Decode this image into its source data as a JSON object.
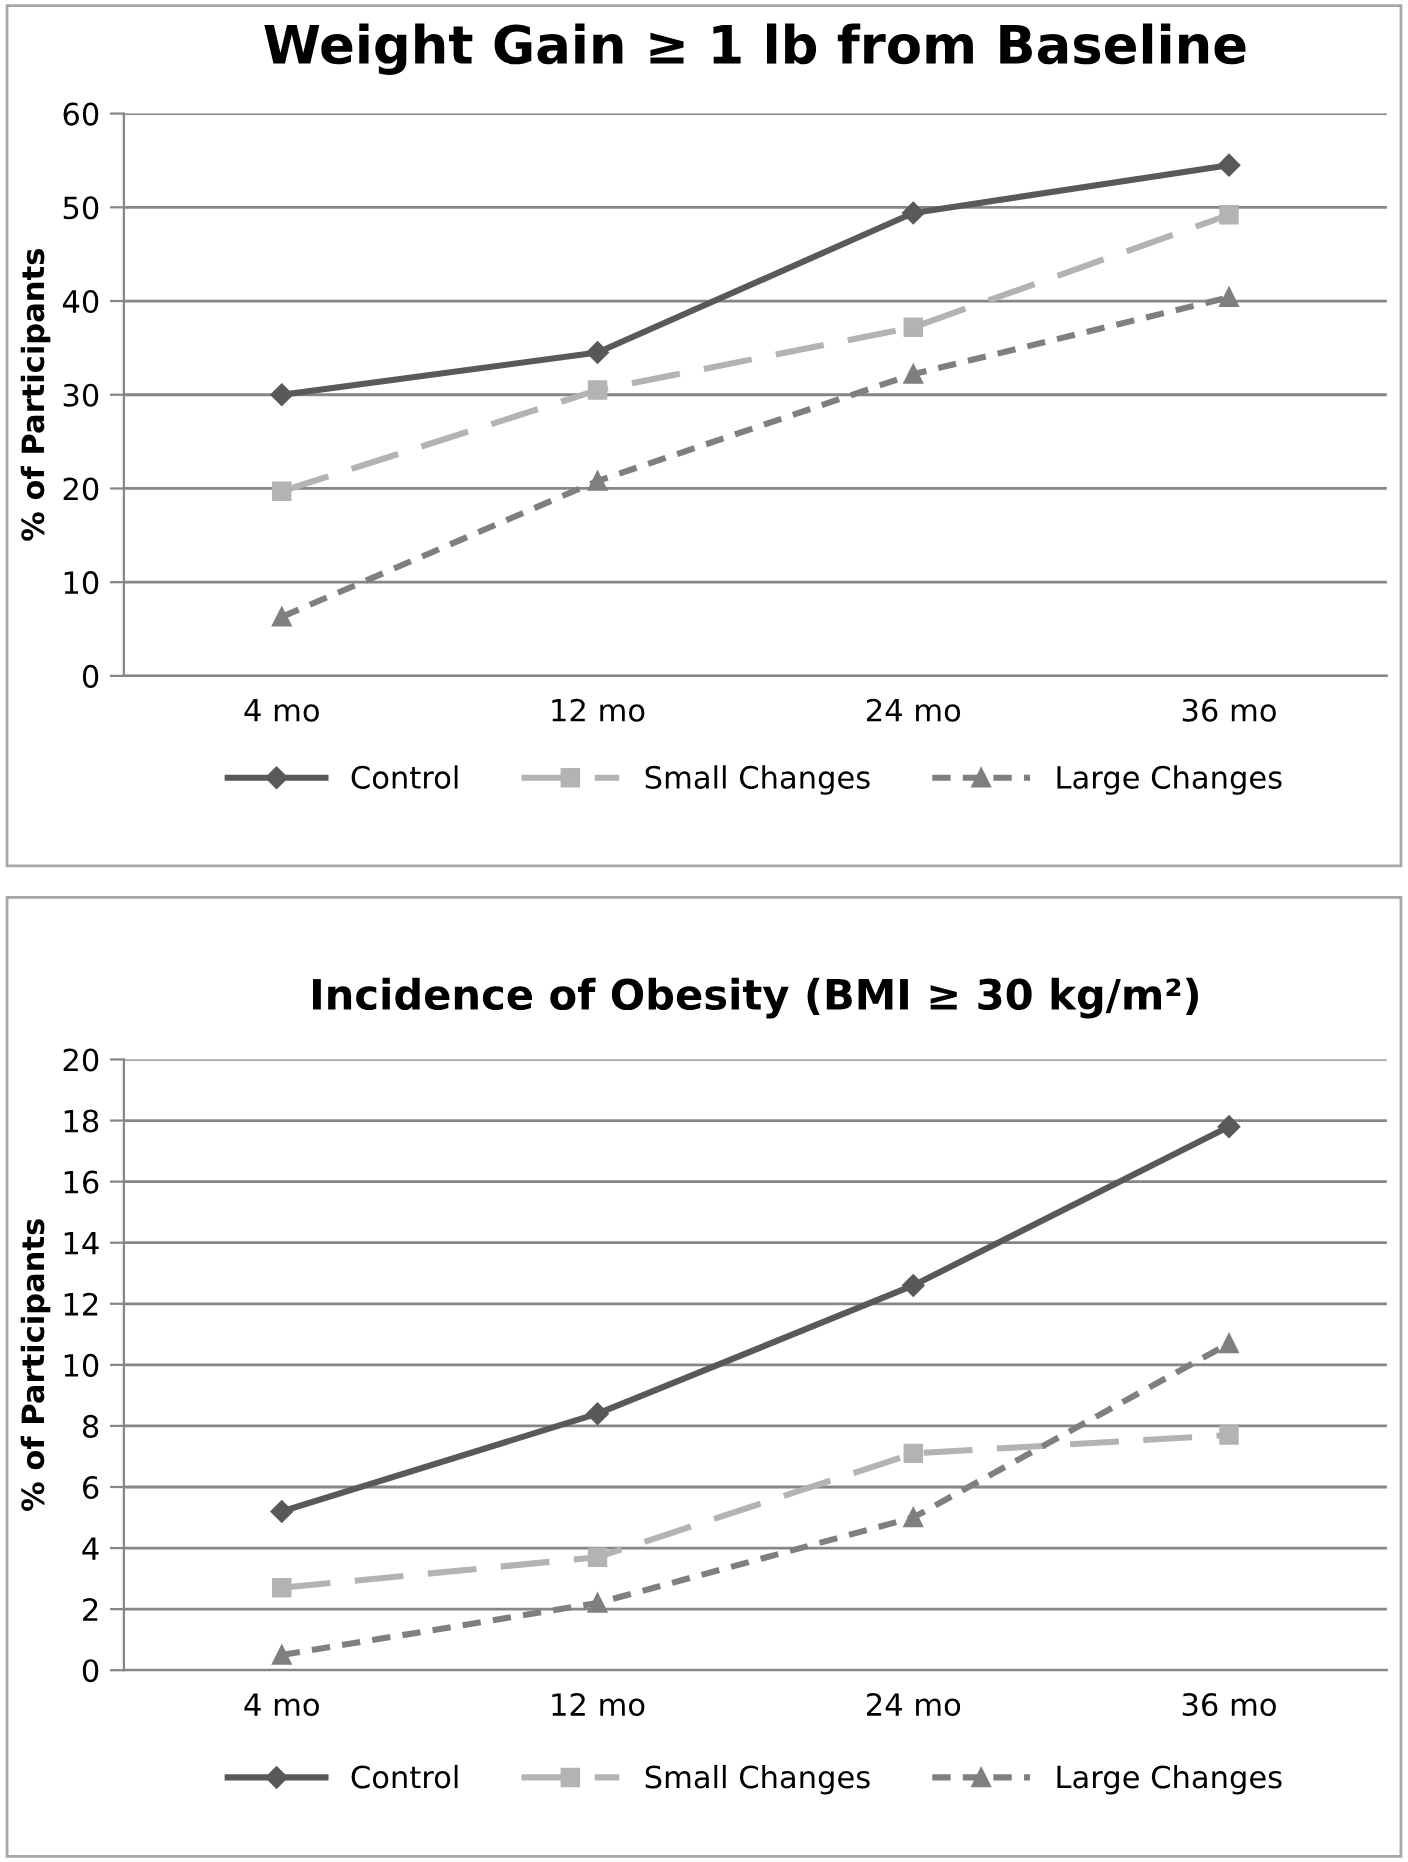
{
  "chart_data": [
    {
      "type": "line",
      "title": "Weight Gain ≥ 1 lb from Baseline",
      "ylabel": "% of Participants",
      "categories": [
        "4 mo",
        "12 mo",
        "24 mo",
        "36 mo"
      ],
      "series": [
        {
          "name": "Control",
          "color": "#595959",
          "marker": "diamond",
          "line_style": "solid",
          "values": [
            30,
            34.5,
            49.4,
            54.5
          ]
        },
        {
          "name": "Small Changes",
          "color": "#b3b3b3",
          "marker": "square",
          "line_style": "dashed",
          "values": [
            19.7,
            30.5,
            37.2,
            49.2
          ]
        },
        {
          "name": "Large Changes",
          "color": "#7f7f7f",
          "marker": "triangle",
          "line_style": "dotted",
          "values": [
            6.3,
            20.8,
            32.2,
            40.4
          ]
        }
      ],
      "ylim": [
        0,
        60
      ],
      "yticks": [
        0,
        10,
        20,
        30,
        40,
        50,
        60
      ],
      "grid": "y",
      "legend": "bottom"
    },
    {
      "type": "line",
      "title": "Incidence of Obesity (BMI ≥ 30 kg/m²)",
      "ylabel": "% of Participants",
      "categories": [
        "4 mo",
        "12 mo",
        "24 mo",
        "36 mo"
      ],
      "series": [
        {
          "name": "Control",
          "color": "#595959",
          "marker": "diamond",
          "line_style": "solid",
          "values": [
            5.2,
            8.4,
            12.6,
            17.8
          ]
        },
        {
          "name": "Small Changes",
          "color": "#b3b3b3",
          "marker": "square",
          "line_style": "dashed",
          "values": [
            2.7,
            3.7,
            7.1,
            7.7
          ]
        },
        {
          "name": "Large Changes",
          "color": "#7f7f7f",
          "marker": "triangle",
          "line_style": "dotted",
          "values": [
            0.5,
            2.2,
            5.0,
            10.7
          ]
        }
      ],
      "ylim": [
        0,
        20
      ],
      "yticks": [
        0,
        2,
        4,
        6,
        8,
        10,
        12,
        14,
        16,
        18,
        20
      ],
      "grid": "y",
      "legend": "bottom"
    }
  ]
}
